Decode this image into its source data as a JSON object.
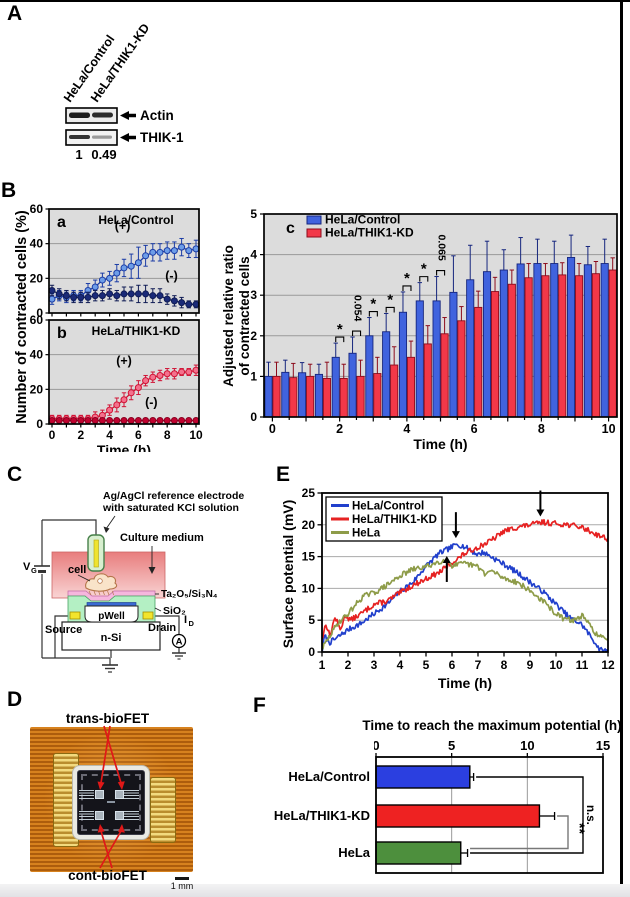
{
  "page": {
    "bg": "#ffffff",
    "frame_color": "#000000",
    "plot_bg": "#dcdcdc",
    "grid_color": "#999999"
  },
  "panels": {
    "a_label": "A",
    "b_label": "B",
    "c_label": "C",
    "d_label": "D",
    "e_label": "E",
    "f_label": "F"
  },
  "panel_a": {
    "lane_labels": [
      "HeLa/Control",
      "HeLa/THIK1-KD"
    ],
    "band_labels": [
      "Actin",
      "THIK-1"
    ],
    "quantification": [
      "1",
      "0.49"
    ]
  },
  "panel_c_diagram": {
    "labels": {
      "electrode_line1": "Ag/AgCl reference electrode",
      "electrode_line2": "with saturated KCl solution",
      "culture_medium": "Culture medium",
      "cell": "cell",
      "gate_stack": "Ta₂O₅/Si₃N₄",
      "oxide": "SiO₂",
      "pwell": "pWell",
      "source": "Source",
      "drain": "Drain",
      "nsi": "n-Si",
      "vg_main": "V",
      "vg_sub": "G",
      "id_main": "I",
      "id_sub": "D",
      "ammeter": "A"
    }
  },
  "panel_d": {
    "top_label": "trans-bioFET",
    "bottom_label": "cont-bioFET",
    "scale_label": "1 mm"
  },
  "chart_data": [
    {
      "id": "contracted_cells_control",
      "panel": "a",
      "type": "line",
      "title": "HeLa/Control",
      "xlabel": "Time (h)",
      "ylabel": "Number of contracted cells (%)",
      "xlim": [
        0,
        10
      ],
      "ylim": [
        0,
        60
      ],
      "xticks": [
        0,
        1,
        2,
        3,
        4,
        5,
        6,
        7,
        8,
        9,
        10
      ],
      "xtick_labels": [
        0,
        2,
        4,
        6,
        8,
        10
      ],
      "yticks": [
        0,
        20,
        40,
        60
      ],
      "grid_y": [
        20,
        40
      ],
      "x": [
        0,
        0.5,
        1,
        1.5,
        2,
        2.5,
        3,
        3.5,
        4,
        4.5,
        5,
        5.5,
        6,
        6.5,
        7,
        7.5,
        8,
        8.5,
        9,
        9.5,
        10
      ],
      "series": [
        {
          "name": "(+)",
          "color": "#6d9de8",
          "edge": "#1c3da6",
          "values": [
            8,
            10,
            9,
            10,
            10,
            13,
            15,
            19,
            20,
            23,
            26,
            27,
            29,
            33,
            35,
            35,
            36,
            36,
            38,
            36,
            37
          ],
          "err": [
            3,
            3,
            3,
            3,
            3,
            4,
            4,
            4,
            4,
            5,
            5,
            7,
            9,
            6,
            5,
            5,
            5,
            5,
            5,
            4,
            5
          ],
          "label_pos": [
            4.9,
            48
          ]
        },
        {
          "name": "(-)",
          "color": "#1a2a78",
          "edge": "#101c55",
          "values": [
            13,
            11,
            10,
            9,
            9,
            9,
            10,
            10,
            11,
            10,
            11,
            11,
            11,
            11,
            10,
            10,
            8,
            7,
            6,
            5,
            5
          ],
          "err": [
            3,
            3,
            3,
            3,
            3,
            3,
            3,
            3,
            3,
            3,
            4,
            4,
            5,
            5,
            4,
            4,
            3,
            3,
            3,
            2,
            2
          ],
          "label_pos": [
            8.3,
            19
          ]
        }
      ]
    },
    {
      "id": "contracted_cells_thik1kd",
      "panel": "b",
      "type": "line",
      "title": "HeLa/THIK1-KD",
      "xlabel": "Time (h)",
      "ylabel": "Number of contracted cells (%)",
      "xlim": [
        0,
        10
      ],
      "ylim": [
        0,
        60
      ],
      "xticks": [
        0,
        1,
        2,
        3,
        4,
        5,
        6,
        7,
        8,
        9,
        10
      ],
      "xtick_labels": [
        0,
        2,
        4,
        6,
        8,
        10
      ],
      "yticks": [
        0,
        20,
        40,
        60
      ],
      "grid_y": [
        20,
        40
      ],
      "x": [
        0,
        0.5,
        1,
        1.5,
        2,
        2.5,
        3,
        3.5,
        4,
        4.5,
        5,
        5.5,
        6,
        6.5,
        7,
        7.5,
        8,
        8.5,
        9,
        9.5,
        10
      ],
      "series": [
        {
          "name": "(+)",
          "color": "#f4718d",
          "edge": "#d01335",
          "values": [
            3,
            3,
            3,
            3,
            3,
            3,
            4,
            5,
            8,
            11,
            14,
            18,
            21,
            25,
            27,
            28,
            29,
            29,
            30,
            30,
            31
          ],
          "err": [
            2,
            2,
            2,
            2,
            2,
            2,
            3,
            3,
            3,
            4,
            4,
            4,
            4,
            3,
            3,
            3,
            3,
            3,
            2,
            2,
            3
          ],
          "label_pos": [
            5.0,
            34
          ]
        },
        {
          "name": "(-)",
          "color": "#c00330",
          "edge": "#8a0020",
          "values": [
            2,
            2,
            2,
            2,
            2,
            2,
            2,
            2,
            2,
            2,
            2,
            2,
            2,
            2,
            2,
            2,
            2,
            2,
            2,
            2,
            2
          ],
          "err": [
            1,
            1,
            1,
            1,
            1,
            1,
            1,
            1,
            1,
            1,
            1,
            1,
            1,
            1,
            1,
            1,
            1,
            1,
            1,
            1,
            1
          ],
          "label_pos": [
            6.9,
            10
          ]
        }
      ]
    },
    {
      "id": "adjusted_ratio",
      "panel": "c",
      "type": "grouped_bar",
      "ylabel_lines": [
        "Adjusted relative ratio",
        "of contracted cells"
      ],
      "xlabel": "Time (h)",
      "ylim": [
        0,
        5
      ],
      "yticks": [
        0,
        1,
        2,
        3,
        4,
        5
      ],
      "grid_y": [
        1,
        2,
        3,
        4
      ],
      "xtick_labels": [
        0,
        2,
        4,
        6,
        8,
        10
      ],
      "categories_h": [
        0,
        0.5,
        1,
        1.5,
        2,
        2.5,
        3,
        3.5,
        4,
        4.5,
        5,
        5.5,
        6,
        6.5,
        7,
        7.5,
        8,
        8.5,
        9,
        9.5,
        10
      ],
      "series": [
        {
          "name": "HeLa/Control",
          "color": "#4063de",
          "edge": "#16267e",
          "values": [
            1.0,
            1.1,
            1.09,
            1.05,
            1.47,
            1.57,
            2.0,
            2.1,
            2.58,
            2.86,
            2.86,
            3.07,
            3.38,
            3.58,
            3.62,
            3.77,
            3.78,
            3.78,
            3.93,
            3.75,
            3.78
          ],
          "err": [
            0.35,
            0.3,
            0.25,
            0.25,
            0.35,
            0.4,
            0.45,
            0.45,
            0.5,
            0.45,
            0.6,
            0.9,
            0.85,
            0.75,
            0.5,
            0.65,
            0.6,
            0.55,
            0.55,
            0.45,
            0.6
          ]
        },
        {
          "name": "HeLa/THIK1-KD",
          "color": "#f23848",
          "edge": "#8c0c1c",
          "values": [
            1.0,
            0.97,
            1.0,
            0.95,
            0.95,
            1.0,
            1.07,
            1.28,
            1.47,
            1.8,
            2.05,
            2.37,
            2.7,
            3.09,
            3.27,
            3.43,
            3.48,
            3.5,
            3.48,
            3.53,
            3.62
          ],
          "err": [
            0.35,
            0.35,
            0.3,
            0.4,
            0.35,
            0.4,
            0.4,
            0.45,
            0.4,
            0.45,
            0.4,
            0.35,
            0.4,
            0.35,
            0.35,
            0.35,
            0.3,
            0.3,
            0.3,
            0.3,
            0.3
          ]
        }
      ],
      "significance": [
        {
          "t": 2,
          "label": "*",
          "rotated": false
        },
        {
          "t": 2.5,
          "label": "0.054",
          "rotated": true
        },
        {
          "t": 3,
          "label": "*",
          "rotated": false
        },
        {
          "t": 3.5,
          "label": "*",
          "rotated": false
        },
        {
          "t": 4,
          "label": "*",
          "rotated": false
        },
        {
          "t": 4.5,
          "label": "*",
          "rotated": false
        },
        {
          "t": 5,
          "label": "0.065",
          "rotated": true
        }
      ]
    },
    {
      "id": "surface_potential",
      "panel": "E",
      "type": "line_noisy",
      "ylabel": "Surface potential (mV)",
      "xlabel": "Time (h)",
      "xlim": [
        1,
        12
      ],
      "ylim": [
        0,
        25
      ],
      "xticks": [
        1,
        2,
        3,
        4,
        5,
        6,
        7,
        8,
        9,
        10,
        11,
        12
      ],
      "yticks": [
        0,
        5,
        10,
        15,
        20,
        25
      ],
      "grid_y": [
        5,
        10,
        15,
        20
      ],
      "series": [
        {
          "name": "HeLa/Control",
          "color": "#2140cc",
          "seed": 7,
          "x": [
            1,
            1.1,
            1.3,
            1.5,
            2,
            2.5,
            3,
            3.5,
            4,
            4.5,
            5,
            5.5,
            6,
            6.2,
            6.5,
            7,
            7.2,
            7.5,
            8,
            8.5,
            9,
            9.5,
            10,
            10.5,
            11,
            11.5,
            11.7,
            12
          ],
          "values": [
            0,
            2.5,
            1.5,
            2,
            3.5,
            4.5,
            6,
            7.5,
            9.5,
            11,
            13.5,
            15.5,
            16.5,
            17,
            16.5,
            15.3,
            15.7,
            15,
            13.8,
            12.5,
            11,
            9.5,
            7.5,
            5.5,
            4.3,
            1.5,
            0.3,
            0.1
          ]
        },
        {
          "name": "HeLa/THIK1-KD",
          "color": "#e62222",
          "seed": 13,
          "x": [
            1,
            1.15,
            1.3,
            1.5,
            1.7,
            1.9,
            2.1,
            2.5,
            3,
            3.5,
            4,
            4.5,
            5,
            5.5,
            6,
            6.5,
            7,
            7.5,
            8,
            8.5,
            9,
            9.5,
            10,
            10.5,
            11,
            11.5,
            12
          ],
          "values": [
            2,
            4.5,
            2.5,
            5.5,
            3.5,
            5.8,
            5,
            6,
            7.5,
            8,
            9.3,
            10.5,
            11.5,
            12.5,
            14,
            15.5,
            16.5,
            17.5,
            19,
            19.6,
            20,
            20.4,
            20.2,
            20,
            19.6,
            18.6,
            17.8
          ]
        },
        {
          "name": "HeLa",
          "color": "#8e9c49",
          "seed": 29,
          "x": [
            1,
            1.3,
            1.6,
            2,
            2.3,
            2.6,
            3,
            3.5,
            4,
            4.5,
            5,
            5.5,
            5.8,
            6,
            6.5,
            7,
            7.3,
            7.5,
            8,
            8.5,
            9,
            9.5,
            10,
            10.3,
            10.7,
            11,
            11.3,
            11.6,
            12
          ],
          "values": [
            0.5,
            2.5,
            4.5,
            6,
            7.5,
            8.8,
            9.3,
            10.5,
            12,
            13,
            13.4,
            14.2,
            14.6,
            13.6,
            13.9,
            13.4,
            12.2,
            12.8,
            11.6,
            11,
            9.6,
            8,
            6,
            5.2,
            5,
            5.7,
            4.2,
            2.6,
            1.8
          ]
        }
      ],
      "arrows": [
        {
          "x": 6.15,
          "y": 17.9,
          "dir": "down"
        },
        {
          "x": 9.4,
          "y": 21.3,
          "dir": "down"
        },
        {
          "x": 5.8,
          "y": 15.1,
          "dir": "up"
        }
      ]
    },
    {
      "id": "time_to_max",
      "panel": "F",
      "type": "hbar",
      "title": "Time to reach the maximum potential (h)",
      "xlim": [
        0,
        15
      ],
      "xticks": [
        0,
        5,
        10,
        15
      ],
      "categories": [
        "HeLa/Control",
        "HeLa/THIK1-KD",
        "HeLa"
      ],
      "values": [
        6.2,
        10.8,
        5.6
      ],
      "errors": [
        0.25,
        1.0,
        0.45
      ],
      "colors": [
        "#2b3fe0",
        "#ee2222",
        "#4d8f3d"
      ],
      "edges": [
        "#101b70",
        "#7a0a0a",
        "#1d4a1d"
      ],
      "significance": [
        {
          "between": [
            "HeLa/Control",
            "HeLa"
          ],
          "label": "n.s."
        },
        {
          "between": [
            "HeLa/THIK1-KD",
            "HeLa"
          ],
          "label": "**"
        }
      ]
    }
  ]
}
